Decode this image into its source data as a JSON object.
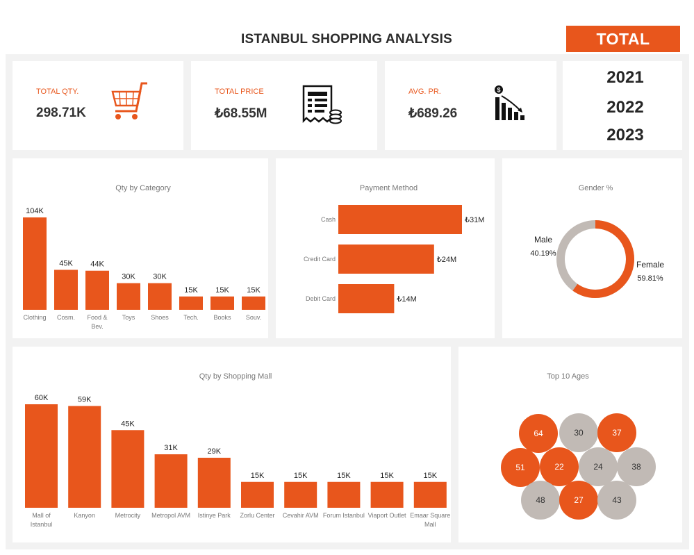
{
  "header": {
    "title": "ISTANBUL SHOPPING ANALYSIS",
    "total_label": "TOTAL"
  },
  "kpis": [
    {
      "label": "TOTAL QTY.",
      "value": "298.71K",
      "icon": "shopping-cart-icon"
    },
    {
      "label": "TOTAL PRICE",
      "value": "₺68.55M",
      "icon": "receipt-coins-icon"
    },
    {
      "label": "AVG. PR.",
      "value": "₺689.26",
      "icon": "declining-chart-icon"
    }
  ],
  "years": [
    "2021",
    "2022",
    "2023"
  ],
  "colors": {
    "accent": "#e8561c",
    "neutral": "#c1bab5",
    "text": "#333333"
  },
  "chart_data": [
    {
      "type": "bar",
      "title": "Qty by Category",
      "categories": [
        "Clothing",
        "Cosm.",
        "Food & Bev.",
        "Toys",
        "Shoes",
        "Tech.",
        "Books",
        "Souv."
      ],
      "values": [
        104,
        45,
        44,
        30,
        30,
        15,
        15,
        15
      ],
      "data_labels": [
        "104K",
        "45K",
        "44K",
        "30K",
        "30K",
        "15K",
        "15K",
        "15K"
      ]
    },
    {
      "type": "bar",
      "orientation": "horizontal",
      "title": "Payment Method",
      "categories": [
        "Cash",
        "Credit Card",
        "Debit Card"
      ],
      "values": [
        31,
        24,
        14
      ],
      "data_labels": [
        "₺31M",
        "₺24M",
        "₺14M"
      ]
    },
    {
      "type": "pie",
      "title": "Gender %",
      "categories": [
        "Male",
        "Female"
      ],
      "values": [
        40.19,
        59.81
      ],
      "data_labels": [
        "40.19%",
        "59.81%"
      ]
    },
    {
      "type": "bar",
      "title": "Qty by Shopping Mall",
      "categories": [
        "Mall of Istanbul",
        "Kanyon",
        "Metrocity",
        "Metropol AVM",
        "Istinye Park",
        "Zorlu Center",
        "Cevahir AVM",
        "Forum Istanbul",
        "Viaport Outlet",
        "Emaar Square Mall"
      ],
      "values": [
        60,
        59,
        45,
        31,
        29,
        15,
        15,
        15,
        15,
        15
      ],
      "data_labels": [
        "60K",
        "59K",
        "45K",
        "31K",
        "29K",
        "15K",
        "15K",
        "15K",
        "15K",
        "15K"
      ]
    },
    {
      "type": "scatter",
      "title": "Top 10 Ages",
      "categories": [
        "64",
        "30",
        "37",
        "51",
        "22",
        "24",
        "38",
        "48",
        "27",
        "43"
      ],
      "highlighted": [
        true,
        false,
        true,
        true,
        true,
        false,
        false,
        false,
        true,
        false
      ]
    }
  ]
}
